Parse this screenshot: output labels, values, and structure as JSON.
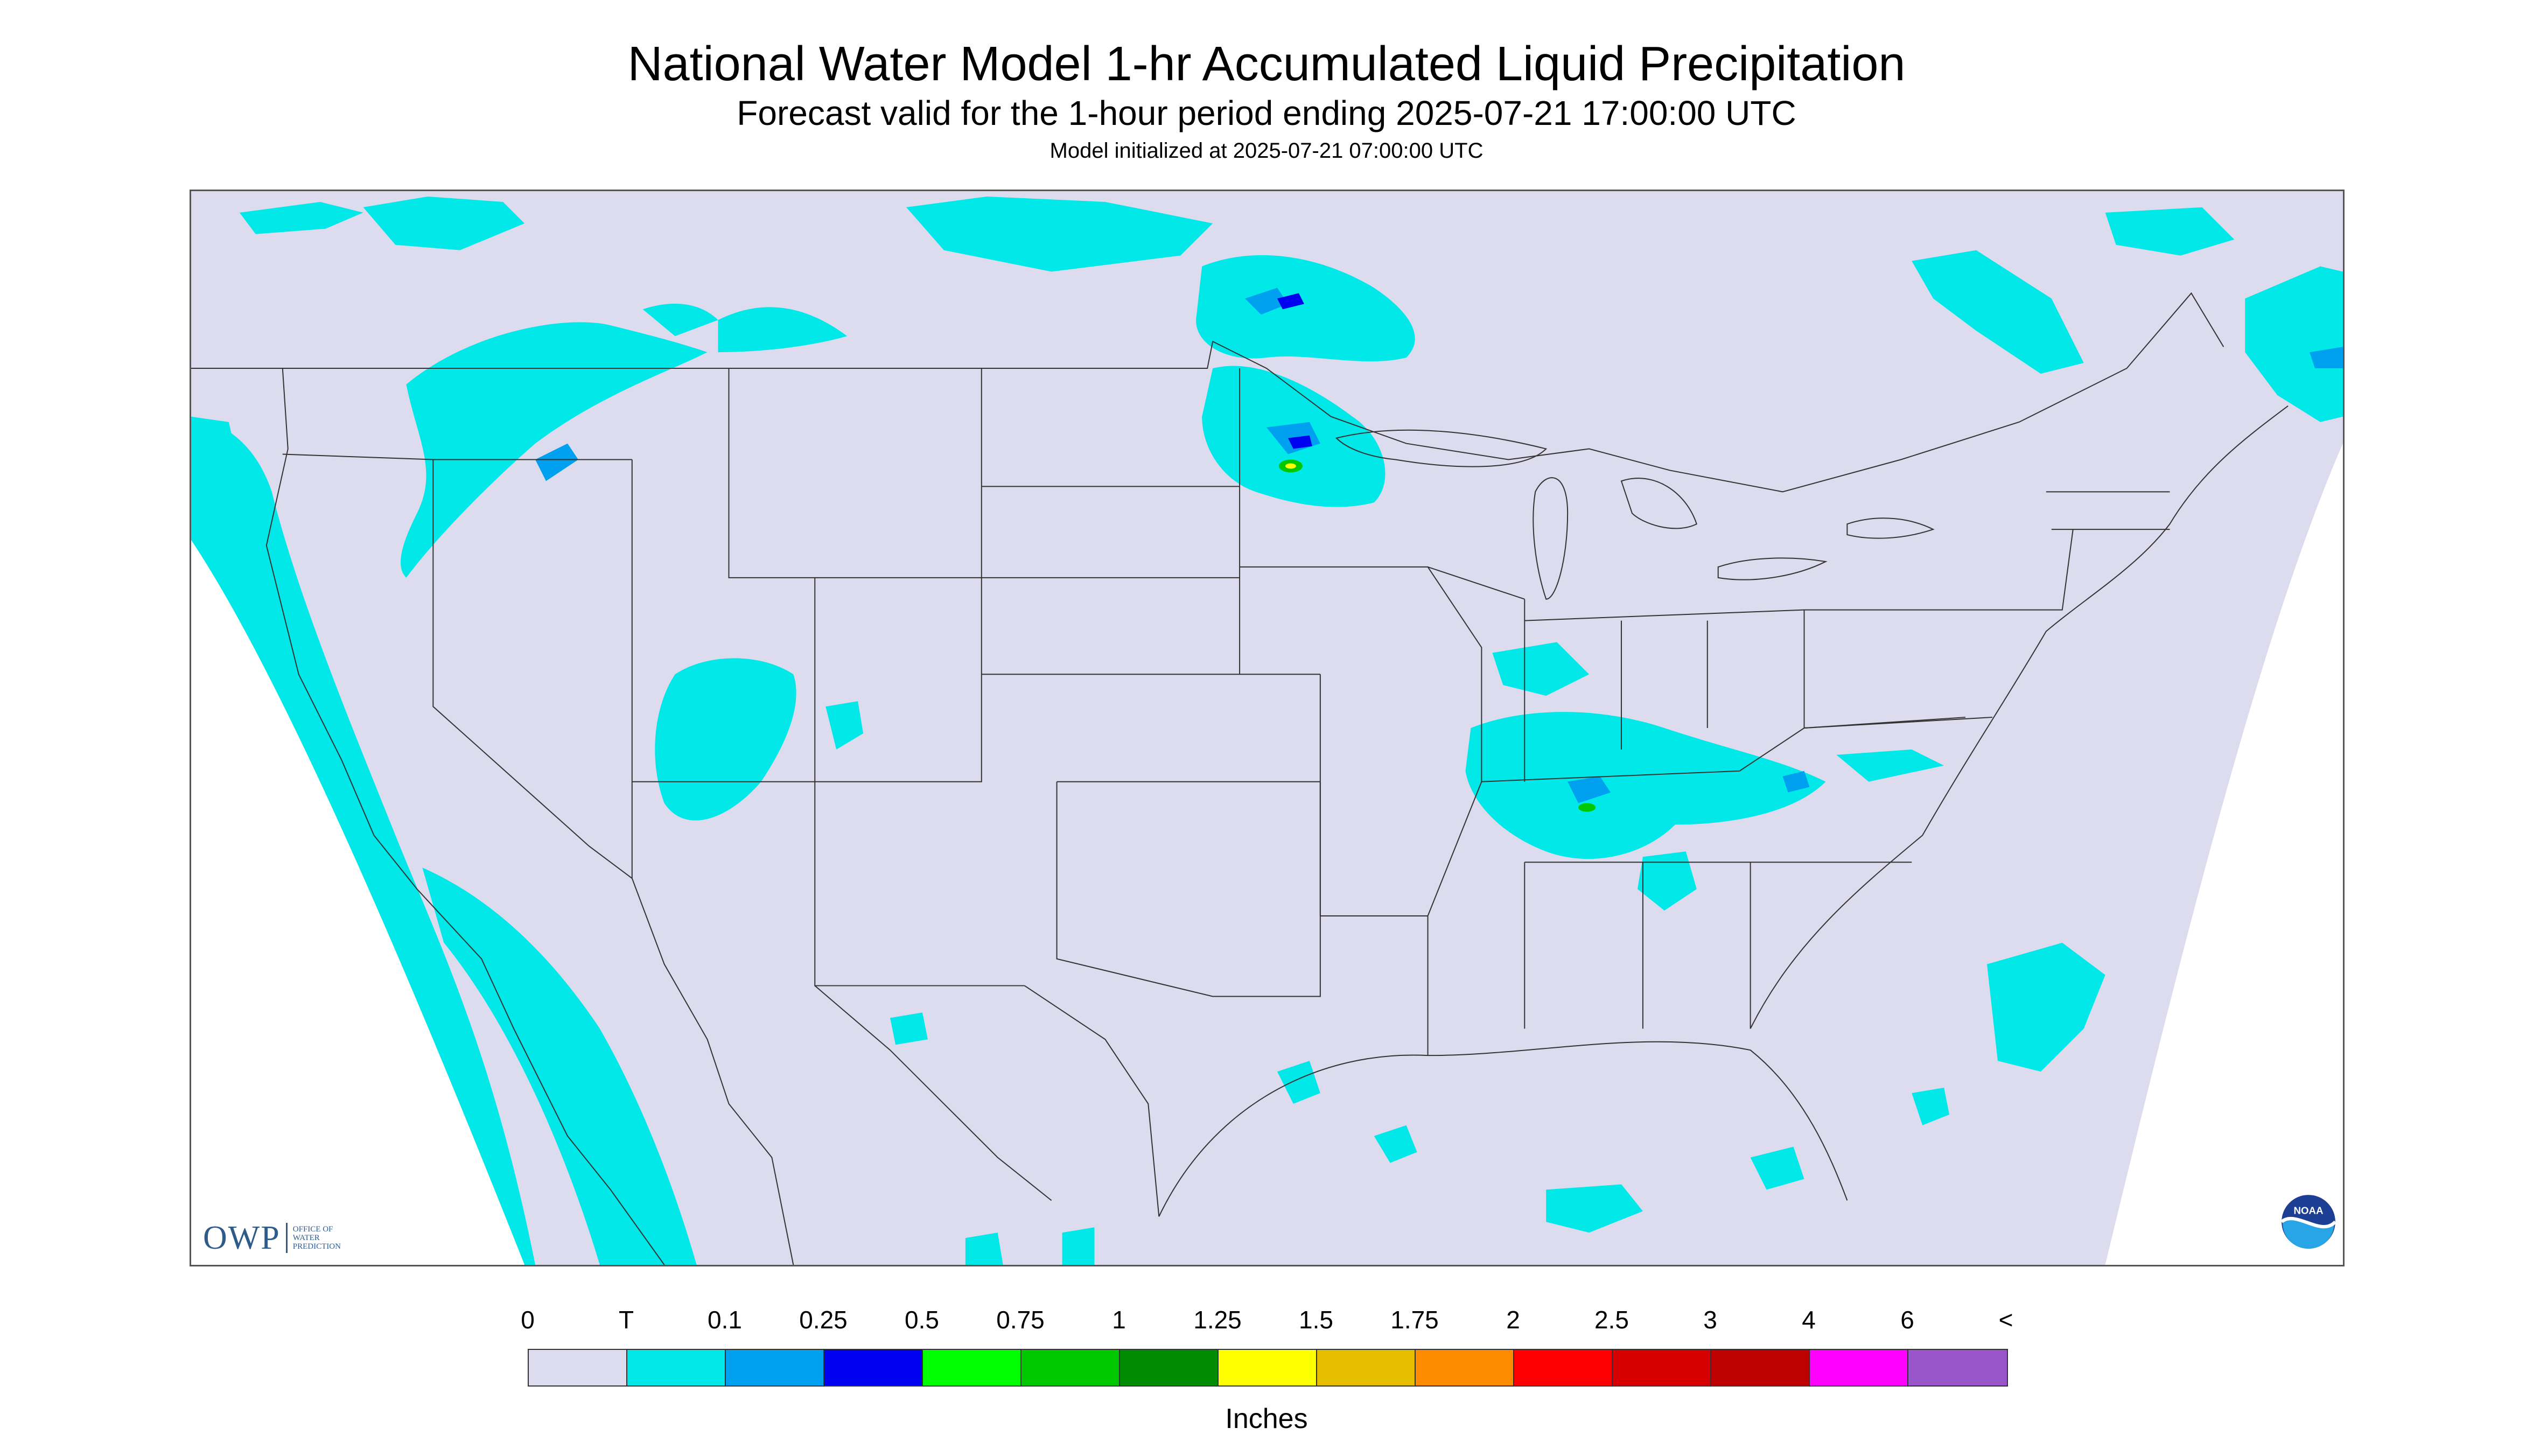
{
  "header": {
    "title": "National Water Model 1-hr Accumulated Liquid Precipitation",
    "subtitle": "Forecast valid for the 1-hour period ending 2025-07-21 17:00:00 UTC",
    "init": "Model initialized at 2025-07-21 07:00:00 UTC"
  },
  "logos": {
    "owp_text": "OWP",
    "owp_small": [
      "OFFICE OF",
      "WATER",
      "PREDICTION"
    ],
    "noaa_text": "NOAA"
  },
  "legend": {
    "tick_labels": [
      "0",
      "T",
      "0.1",
      "0.25",
      "0.5",
      "0.75",
      "1",
      "1.25",
      "1.5",
      "1.75",
      "2",
      "2.5",
      "3",
      "4",
      "6",
      "<"
    ],
    "colors": [
      "#dcdcee",
      "#00e8e8",
      "#00a0f0",
      "#0000f0",
      "#00ff00",
      "#00c800",
      "#008c00",
      "#ffff00",
      "#e6be00",
      "#ff8c00",
      "#ff0000",
      "#d70000",
      "#be0000",
      "#ff00ff",
      "#9955c9"
    ],
    "units": "Inches"
  },
  "map": {
    "background_color": "#dcdcee",
    "trace_color": "#00e8e8",
    "light_color": "#00a0f0",
    "moderate_color": "#0000f0",
    "heavy_color": "#00c800",
    "heavier_color": "#ffff00",
    "boundary_color": "#333333",
    "outside_color": "#ffffff"
  }
}
